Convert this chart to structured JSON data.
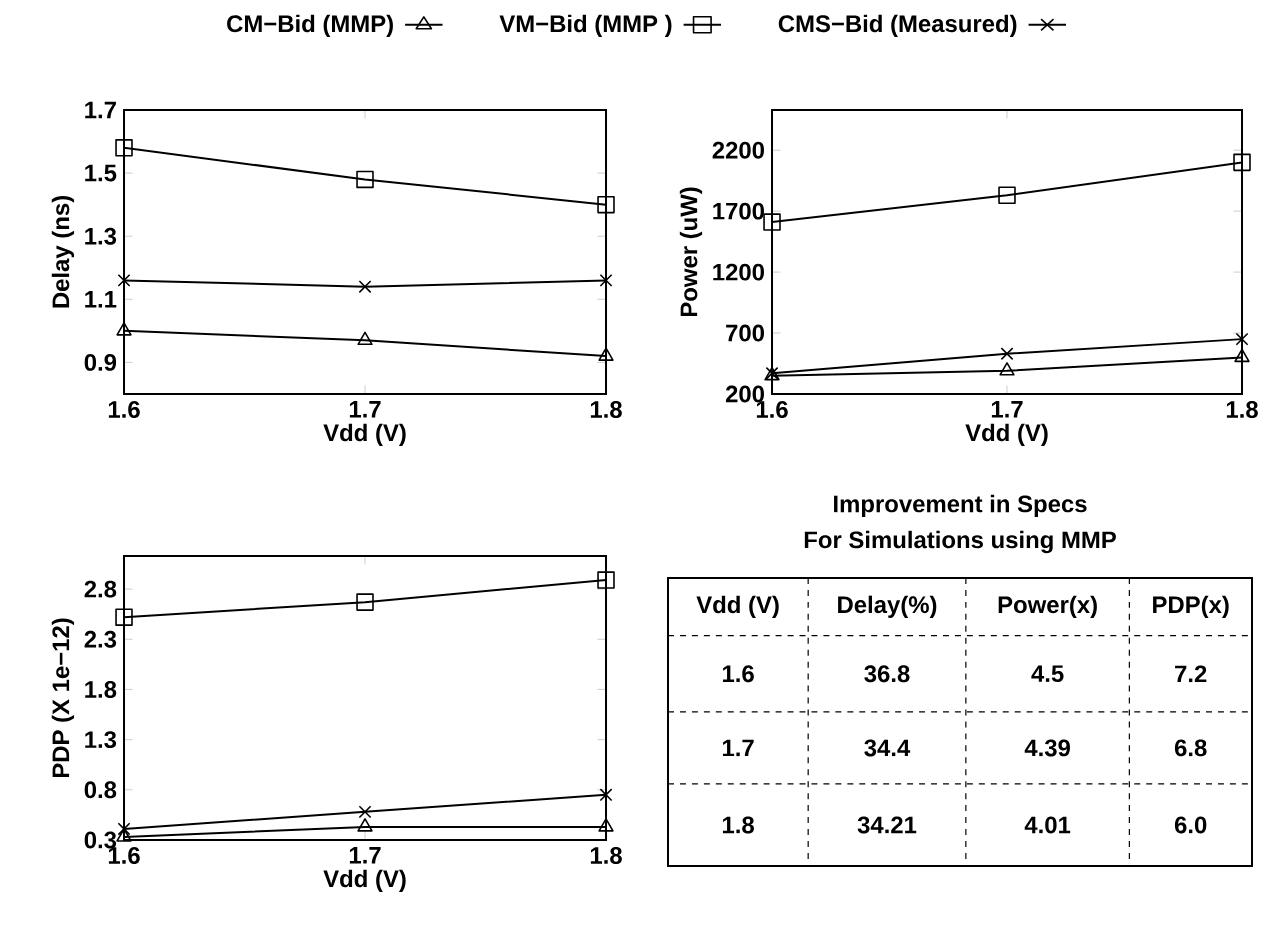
{
  "chart_data": [
    {
      "type": "line",
      "xlabel": "Vdd (V)",
      "ylabel": "Delay (ns)",
      "x": [
        1.6,
        1.7,
        1.8
      ],
      "xlim": [
        1.6,
        1.8
      ],
      "xticks": [
        1.6,
        1.7,
        1.8
      ],
      "ylim": [
        0.8,
        1.7
      ],
      "yticks": [
        0.9,
        1.1,
        1.3,
        1.5,
        1.7
      ],
      "legend": "top",
      "line_style": "solid",
      "series": [
        {
          "name": "CM−Bid (MMP)",
          "color": "#000000",
          "marker": "triangle",
          "values": [
            1.0,
            0.97,
            0.92
          ]
        },
        {
          "name": "VM−Bid (MMP )",
          "color": "#000000",
          "marker": "square",
          "values": [
            1.58,
            1.48,
            1.4
          ]
        },
        {
          "name": "CMS−Bid (Measured)",
          "color": "#000000",
          "marker": "cross",
          "values": [
            1.16,
            1.14,
            1.16
          ]
        }
      ]
    },
    {
      "type": "line",
      "xlabel": "Vdd (V)",
      "ylabel": "Power (uW)",
      "x": [
        1.6,
        1.7,
        1.8
      ],
      "xlim": [
        1.6,
        1.8
      ],
      "xticks": [
        1.6,
        1.7,
        1.8
      ],
      "ylim": [
        200,
        2530
      ],
      "yticks": [
        200,
        700,
        1200,
        1700,
        2200
      ],
      "line_style": "solid",
      "series": [
        {
          "color": "#000000",
          "marker": "triangle",
          "values": [
            350,
            390,
            500
          ]
        },
        {
          "color": "#000000",
          "marker": "square",
          "values": [
            1610,
            1830,
            2100
          ]
        },
        {
          "color": "#000000",
          "marker": "cross",
          "values": [
            370,
            530,
            650
          ]
        }
      ]
    },
    {
      "type": "line",
      "xlabel": "Vdd (V)",
      "ylabel": "PDP (X 1e−12)",
      "x": [
        1.6,
        1.7,
        1.8
      ],
      "xlim": [
        1.6,
        1.8
      ],
      "xticks": [
        1.6,
        1.7,
        1.8
      ],
      "ylim": [
        0.3,
        3.13
      ],
      "yticks": [
        0.3,
        0.8,
        1.3,
        1.8,
        2.3,
        2.8
      ],
      "line_style": "solid",
      "series": [
        {
          "color": "#000000",
          "marker": "triangle",
          "values": [
            0.33,
            0.43,
            0.43
          ]
        },
        {
          "color": "#000000",
          "marker": "square",
          "values": [
            2.52,
            2.67,
            2.89
          ]
        },
        {
          "color": "#000000",
          "marker": "cross",
          "values": [
            0.41,
            0.58,
            0.75
          ]
        }
      ]
    },
    {
      "type": "other",
      "title": "Improvement in Specs",
      "subtitle": "For Simulations using MMP",
      "categories": [
        "Vdd (V)",
        "Delay(%)",
        "Power(x)",
        "PDP(x)"
      ],
      "annotations": [
        "1.6",
        "36.8",
        "4.5",
        "7.2",
        "1.7",
        "34.4",
        "4.39",
        "6.8",
        "1.8",
        "34.21",
        "4.01",
        "6.0"
      ]
    }
  ]
}
